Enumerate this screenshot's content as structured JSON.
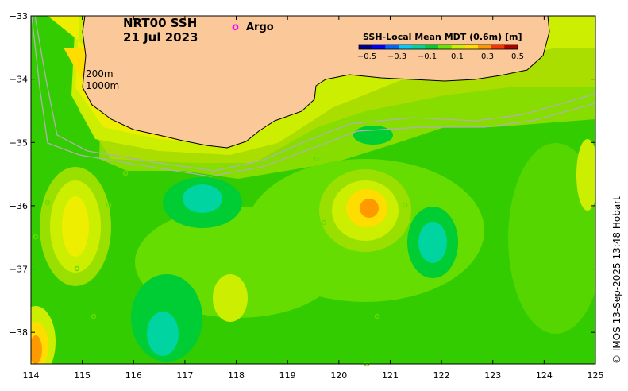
{
  "map": {
    "title_line1": "NRT00 SSH",
    "title_line2": "21 Jul 2023",
    "argo_marker": "o",
    "argo_label": "Argo",
    "isobath_200": "200m",
    "isobath_1000": "1000m",
    "credit": "© IMOS 13-Sep-2025 13:48 Hobart",
    "lon_range": [
      114,
      125
    ],
    "lat_range": [
      -38.5,
      -33
    ],
    "x_ticks": [
      "114",
      "115",
      "116",
      "117",
      "118",
      "119",
      "120",
      "121",
      "122",
      "123",
      "124",
      "125"
    ],
    "y_ticks": [
      "−33",
      "−34",
      "−35",
      "−36",
      "−37",
      "−38"
    ],
    "colors": {
      "land": "#fbc999",
      "argo": "#ff00ff",
      "isobath": "#b0b0b0"
    }
  },
  "colorbar": {
    "title": "SSH-Local Mean MDT (0.6m) [m]",
    "ticks": [
      "−0.5",
      "−0.3",
      "−0.1",
      "0.1",
      "0.3",
      "0.5"
    ],
    "stops": [
      "#00008f",
      "#0000ff",
      "#0066ff",
      "#00ccff",
      "#00d4a0",
      "#00cc33",
      "#66e600",
      "#ccee00",
      "#ffdd00",
      "#ff9900",
      "#ff3300",
      "#b00000"
    ]
  }
}
